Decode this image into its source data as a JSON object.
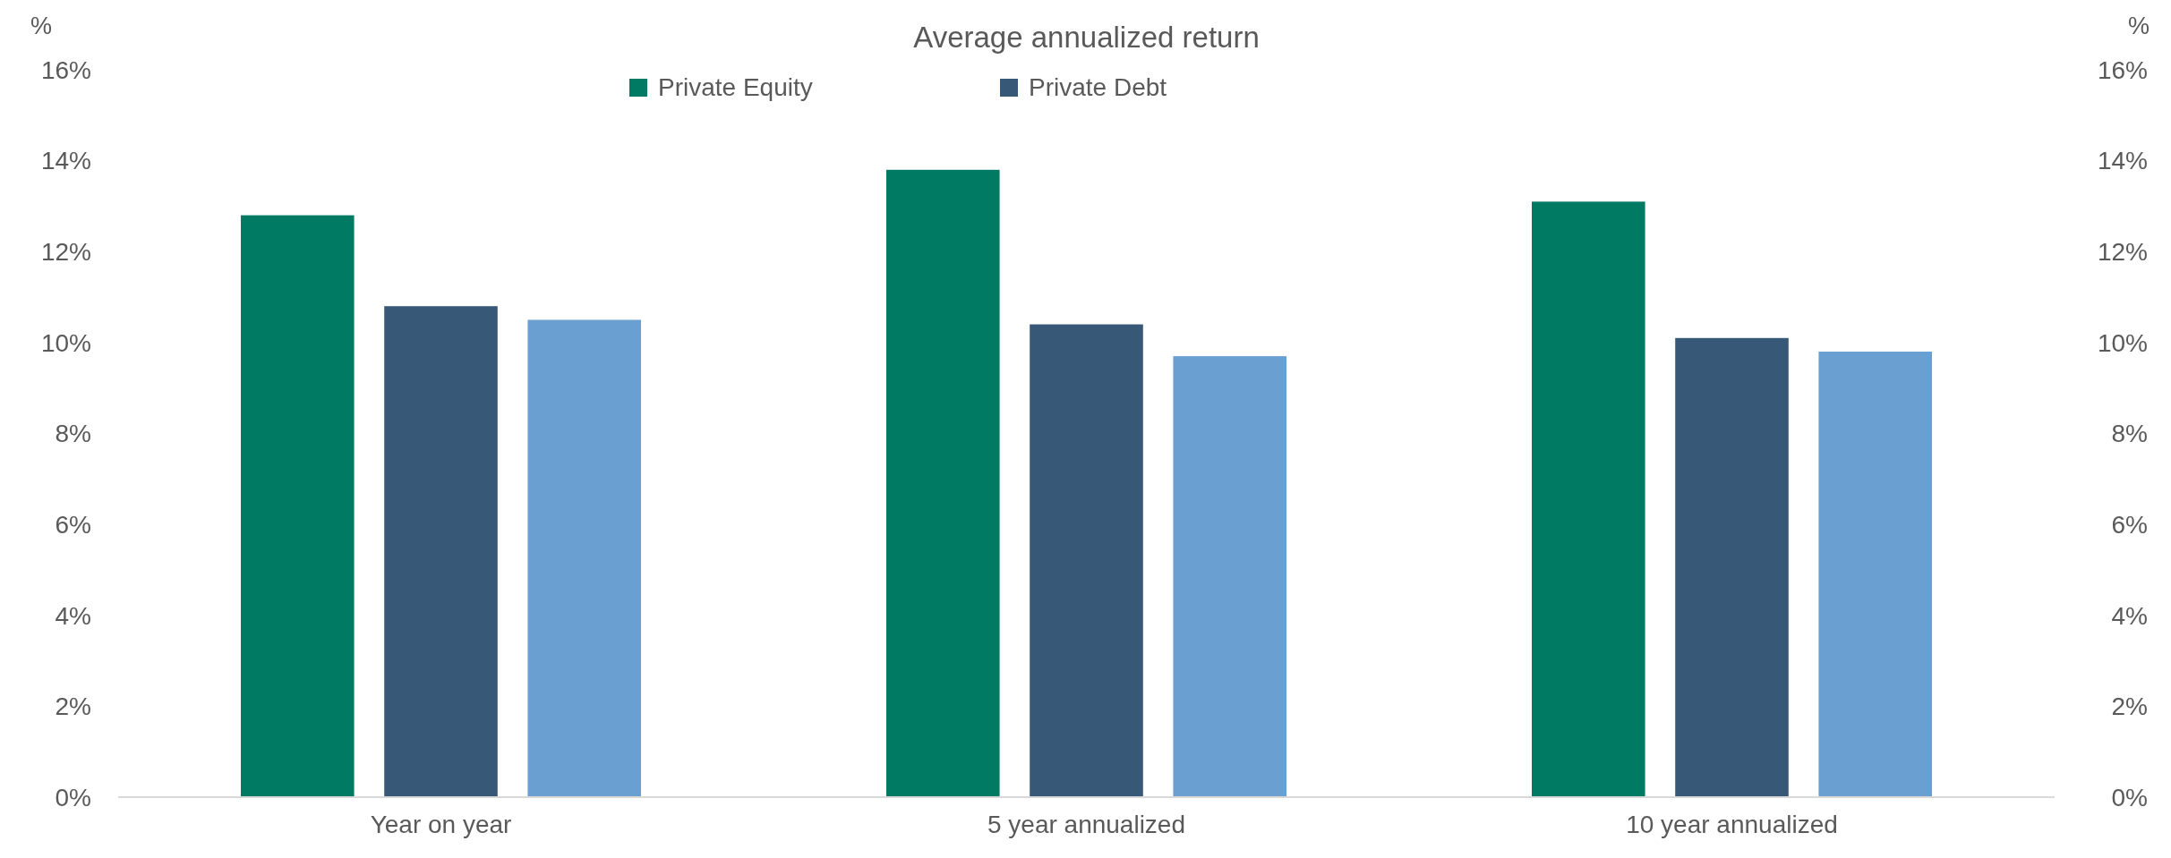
{
  "chart_data": {
    "type": "bar",
    "title": "Average annualized return",
    "ylabel": "%",
    "y2label": "%",
    "categories": [
      "Year on year",
      "5 year annualized",
      "10 year annualized"
    ],
    "series": [
      {
        "name": "Private Equity",
        "color": "#007a62",
        "values": [
          12.8,
          13.8,
          13.1
        ]
      },
      {
        "name": "Private Debt",
        "color": "#375876",
        "values": [
          10.8,
          10.4,
          10.1
        ]
      },
      {
        "color": "#6a9fd1",
        "values": [
          10.5,
          9.7,
          9.8
        ]
      }
    ],
    "ylim": [
      0,
      16
    ],
    "yticks": [
      {
        "value": 0,
        "label": "0%"
      },
      {
        "value": 2,
        "label": "2%"
      },
      {
        "value": 4,
        "label": "4%"
      },
      {
        "value": 6,
        "label": "6%"
      },
      {
        "value": 8,
        "label": "8%"
      },
      {
        "value": 10,
        "label": "10%"
      },
      {
        "value": 12,
        "label": "12%"
      },
      {
        "value": 14,
        "label": "14%"
      },
      {
        "value": 16,
        "label": "16%"
      }
    ],
    "y2lim": [
      0,
      16
    ],
    "y2ticks": [
      {
        "value": 0,
        "label": "0%"
      },
      {
        "value": 2,
        "label": "2%"
      },
      {
        "value": 4,
        "label": "4%"
      },
      {
        "value": 6,
        "label": "6%"
      },
      {
        "value": 8,
        "label": "8%"
      },
      {
        "value": 10,
        "label": "10%"
      },
      {
        "value": 12,
        "label": "12%"
      },
      {
        "value": 14,
        "label": "14%"
      },
      {
        "value": 16,
        "label": "16%"
      }
    ],
    "legend": "top",
    "grid": false
  }
}
